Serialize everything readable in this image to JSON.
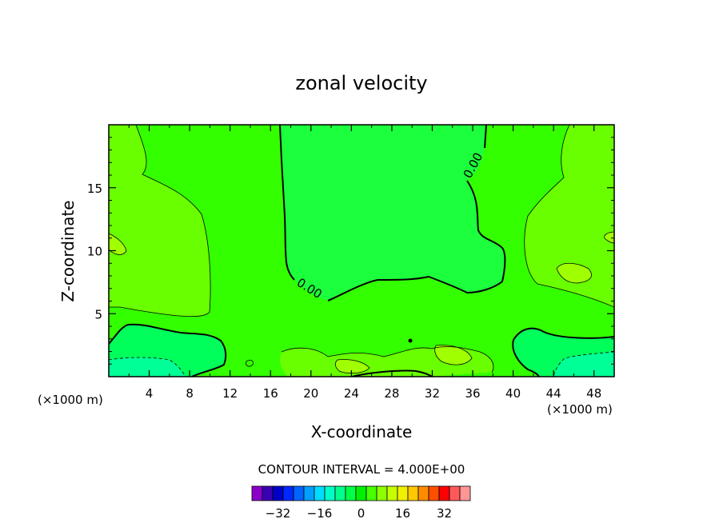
{
  "chart_data": {
    "type": "contour",
    "title": "zonal velocity",
    "xlabel": "X-coordinate",
    "ylabel": "Z-coordinate",
    "x_unit_left": "(×1000 m)",
    "x_unit_right": "(×1000 m)",
    "xlim": [
      0,
      50
    ],
    "ylim": [
      0,
      20
    ],
    "x_ticks": [
      4,
      8,
      12,
      16,
      20,
      24,
      28,
      32,
      36,
      40,
      44,
      48
    ],
    "y_ticks": [
      5,
      10,
      15
    ],
    "contour_label": "0.00",
    "contour_interval_text": "CONTOUR INTERVAL = 4.000E+00",
    "colorbar": {
      "colors": [
        "#8a00c8",
        "#3c00b4",
        "#0000c8",
        "#0028ff",
        "#0064ff",
        "#00a0ff",
        "#00dcff",
        "#00ffc8",
        "#00ff8c",
        "#00ff46",
        "#00f000",
        "#46ff00",
        "#8cff00",
        "#c8ff00",
        "#f0f000",
        "#ffc800",
        "#ff8c00",
        "#ff5000",
        "#ff0000",
        "#ff5a5a",
        "#ff9696"
      ],
      "tick_values": [
        -32,
        -16,
        0,
        16,
        32
      ],
      "tick_labels": [
        "−32",
        "−16",
        "0",
        "16",
        "32"
      ],
      "min": -42,
      "max": 42
    },
    "colors": {
      "light_green": "#69ff00",
      "green": "#33ff00",
      "green_cyan": "#00ff5a",
      "cyan_green": "#00ff96",
      "yellow_green": "#a0ff00"
    }
  }
}
